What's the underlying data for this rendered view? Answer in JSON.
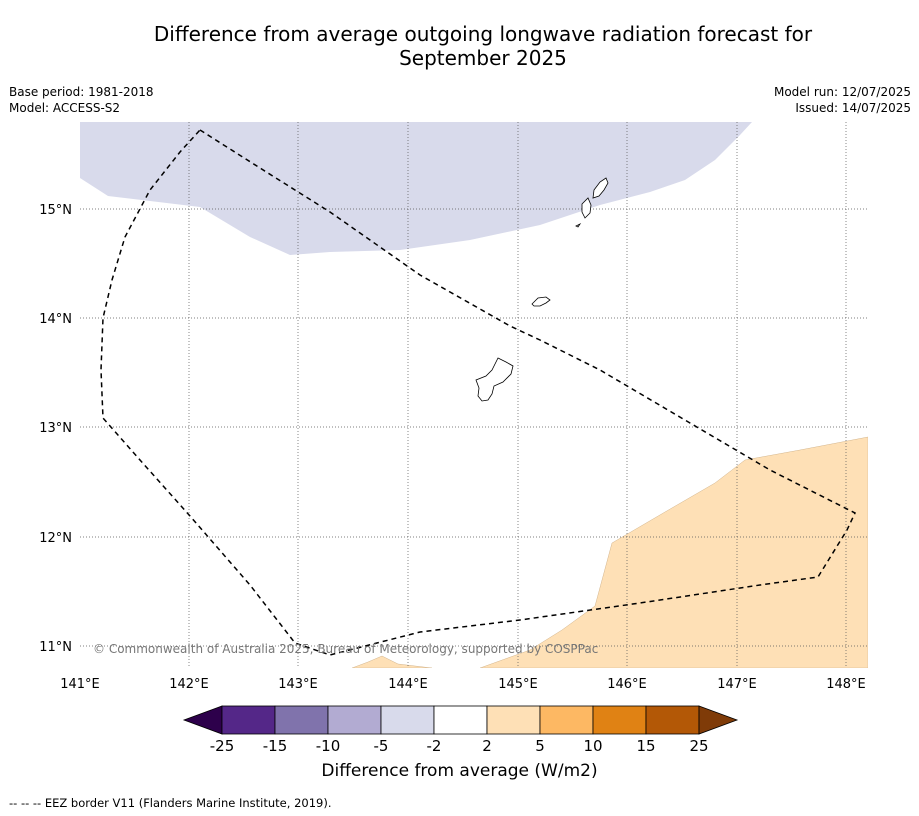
{
  "title_line1": "Difference from average outgoing longwave radiation forecast for",
  "title_line2": "September 2025",
  "base_period": "Base period: 1981-2018",
  "model": "Model: ACCESS-S2",
  "model_run": "Model run: 12/07/2025",
  "issued": "Issued: 14/07/2025",
  "copyright": "© Commonwealth of Australia 2025, Bureau of Meteorology, supported by COSPPac",
  "lon_labels": [
    "141°E",
    "142°E",
    "143°E",
    "144°E",
    "145°E",
    "146°E",
    "147°E",
    "148°E"
  ],
  "lat_labels": [
    "15°N",
    "14°N",
    "13°N",
    "12°N",
    "11°N"
  ],
  "colorbar": {
    "title": "Difference from average (W/m2)",
    "ticks": [
      "-25",
      "-15",
      "-10",
      "-5",
      "-2",
      "2",
      "5",
      "10",
      "15",
      "25"
    ],
    "colors": [
      "#2d004b",
      "#542788",
      "#8073ac",
      "#b2abd2",
      "#d8daeb",
      "#ffffff",
      "#fee0b6",
      "#fdb863",
      "#e08214",
      "#b35806",
      "#7f3b08"
    ]
  },
  "footer": "--  --  -- EEZ border V11 (Flanders Marine Institute, 2019).",
  "map_fills": {
    "negative_region": "#d8daeb",
    "positive_region": "#fee0b6"
  }
}
